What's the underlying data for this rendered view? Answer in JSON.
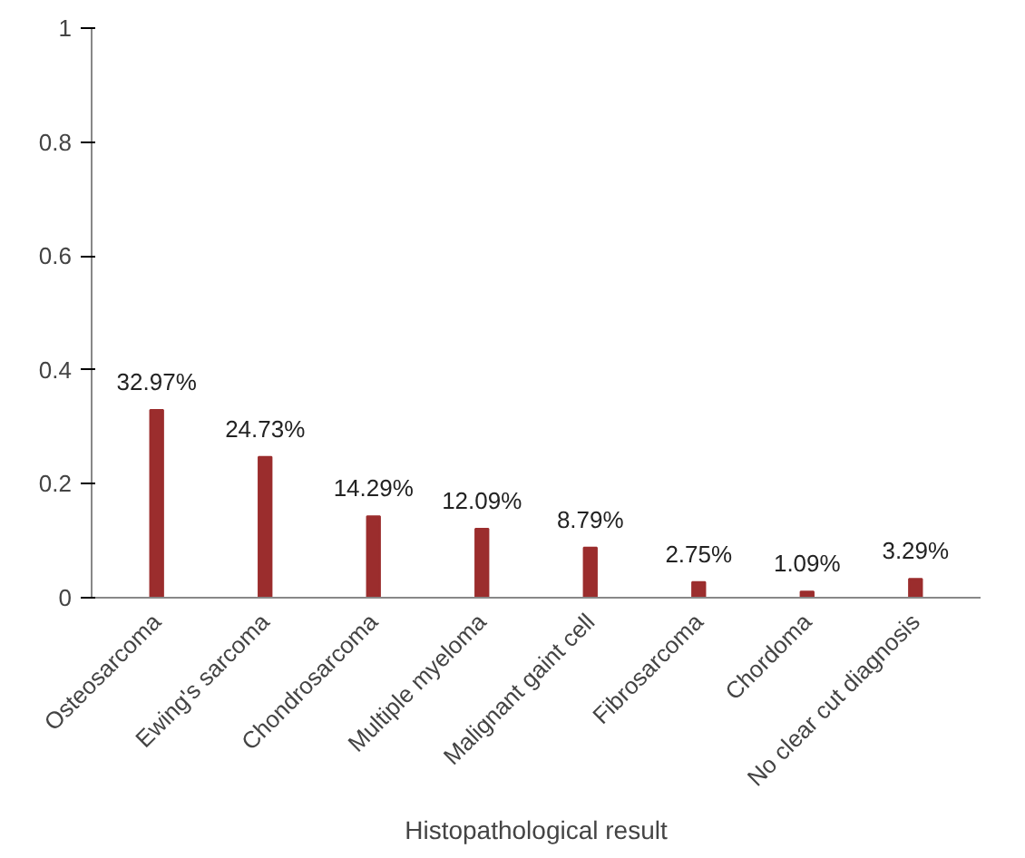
{
  "chart_data": {
    "type": "bar",
    "xlabel": "Histopathological result",
    "categories": [
      "Osteosarcoma",
      "Ewing's sarcoma",
      "Chondrosarcoma",
      "Multiple myeloma",
      "Malignant gaint cell",
      "Fibrosarcoma",
      "Chordoma",
      "No clear cut diagnosis"
    ],
    "values": [
      0.3297,
      0.2473,
      0.1429,
      0.1209,
      0.0879,
      0.0275,
      0.0109,
      0.0329
    ],
    "value_labels": [
      "32.97%",
      "24.73%",
      "14.29%",
      "12.09%",
      "8.79%",
      "2.75%",
      "1.09%",
      "3.29%"
    ],
    "color": "#9b2d2d",
    "ylim": [
      0,
      1
    ],
    "yticks": [
      0,
      0.2,
      0.4,
      0.6,
      0.8,
      1
    ],
    "grid": false
  }
}
